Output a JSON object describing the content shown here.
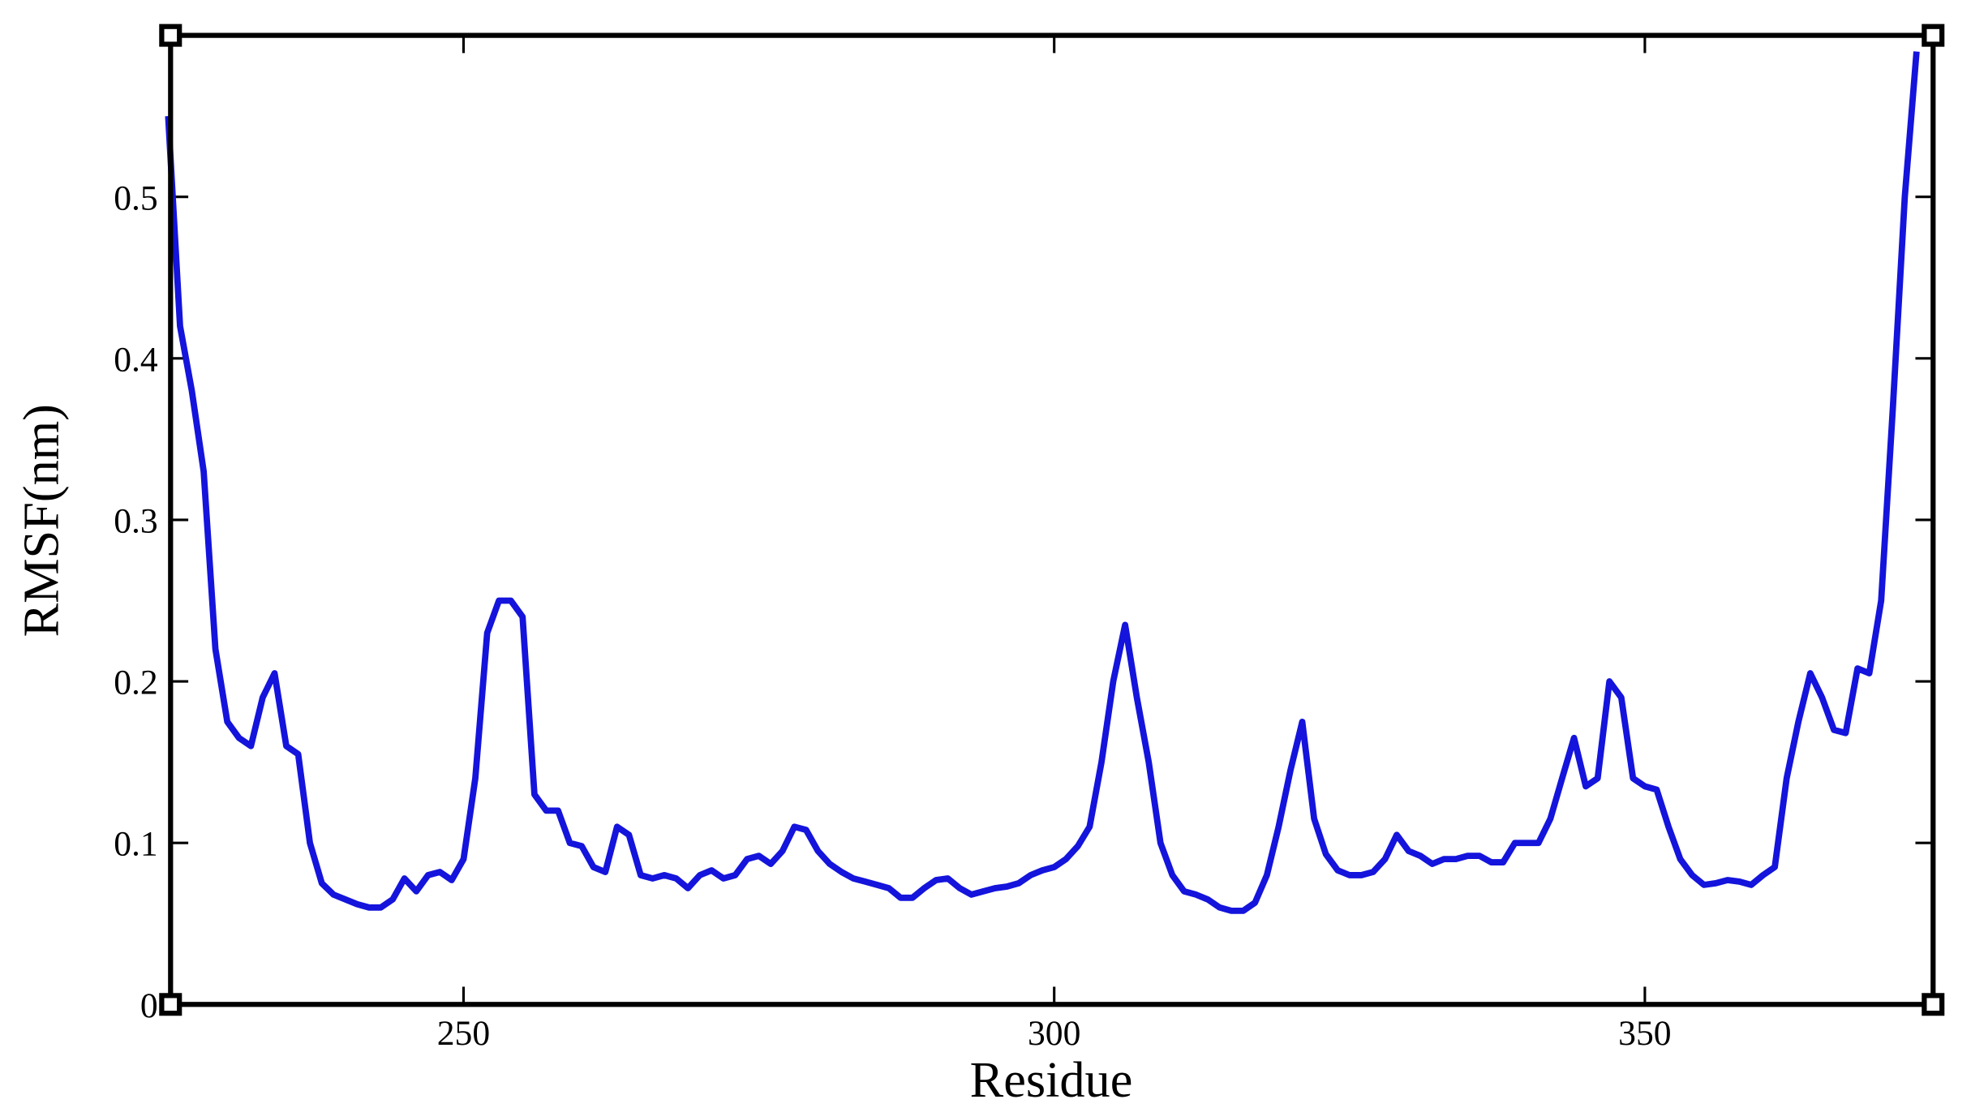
{
  "chart_data": {
    "type": "line",
    "x_label": "Residue",
    "y_label": "RMSF(nm)",
    "x": [
      225,
      226,
      227,
      228,
      229,
      230,
      231,
      232,
      233,
      234,
      235,
      236,
      237,
      238,
      239,
      240,
      241,
      242,
      243,
      244,
      245,
      246,
      247,
      248,
      249,
      250,
      251,
      252,
      253,
      254,
      255,
      256,
      257,
      258,
      259,
      260,
      261,
      262,
      263,
      264,
      265,
      266,
      267,
      268,
      269,
      270,
      271,
      272,
      273,
      274,
      275,
      276,
      277,
      278,
      279,
      280,
      281,
      282,
      283,
      284,
      285,
      286,
      287,
      288,
      289,
      290,
      291,
      292,
      293,
      294,
      295,
      296,
      297,
      298,
      299,
      300,
      301,
      302,
      303,
      304,
      305,
      306,
      307,
      308,
      309,
      310,
      311,
      312,
      313,
      314,
      315,
      316,
      317,
      318,
      319,
      320,
      321,
      322,
      323,
      324,
      325,
      326,
      327,
      328,
      329,
      330,
      331,
      332,
      333,
      334,
      335,
      336,
      337,
      338,
      339,
      340,
      341,
      342,
      343,
      344,
      345,
      346,
      347,
      348,
      349,
      350,
      351,
      352,
      353,
      354,
      355,
      356,
      357,
      358,
      359,
      360,
      361,
      362,
      363,
      364,
      365,
      366,
      367,
      368,
      369,
      370,
      371,
      372,
      373
    ],
    "values": [
      0.55,
      0.42,
      0.38,
      0.33,
      0.22,
      0.175,
      0.165,
      0.16,
      0.19,
      0.205,
      0.16,
      0.155,
      0.1,
      0.075,
      0.068,
      0.065,
      0.062,
      0.06,
      0.06,
      0.065,
      0.078,
      0.07,
      0.08,
      0.082,
      0.077,
      0.09,
      0.14,
      0.23,
      0.25,
      0.25,
      0.24,
      0.13,
      0.12,
      0.12,
      0.1,
      0.098,
      0.085,
      0.082,
      0.11,
      0.105,
      0.08,
      0.078,
      0.08,
      0.078,
      0.072,
      0.08,
      0.083,
      0.078,
      0.08,
      0.09,
      0.092,
      0.087,
      0.095,
      0.11,
      0.108,
      0.095,
      0.087,
      0.082,
      0.078,
      0.076,
      0.074,
      0.072,
      0.066,
      0.066,
      0.072,
      0.077,
      0.078,
      0.072,
      0.068,
      0.07,
      0.072,
      0.073,
      0.075,
      0.08,
      0.083,
      0.085,
      0.09,
      0.098,
      0.11,
      0.15,
      0.2,
      0.235,
      0.19,
      0.15,
      0.1,
      0.08,
      0.07,
      0.068,
      0.065,
      0.06,
      0.058,
      0.058,
      0.063,
      0.08,
      0.11,
      0.145,
      0.175,
      0.115,
      0.093,
      0.083,
      0.08,
      0.08,
      0.082,
      0.09,
      0.105,
      0.095,
      0.092,
      0.087,
      0.09,
      0.09,
      0.092,
      0.092,
      0.088,
      0.088,
      0.1,
      0.1,
      0.1,
      0.115,
      0.14,
      0.165,
      0.135,
      0.14,
      0.2,
      0.19,
      0.14,
      0.135,
      0.133,
      0.11,
      0.09,
      0.08,
      0.074,
      0.075,
      0.077,
      0.076,
      0.074,
      0.08,
      0.085,
      0.14,
      0.175,
      0.205,
      0.19,
      0.17,
      0.168,
      0.208,
      0.205,
      0.25,
      0.37,
      0.5,
      0.59
    ],
    "color": "#1414dc",
    "xlim": [
      225.2,
      374.4
    ],
    "xticks": [
      250,
      300,
      350
    ],
    "ylim": [
      0,
      0.6
    ],
    "yticks": [
      0,
      0.1,
      0.2,
      0.3,
      0.4,
      0.5
    ]
  }
}
